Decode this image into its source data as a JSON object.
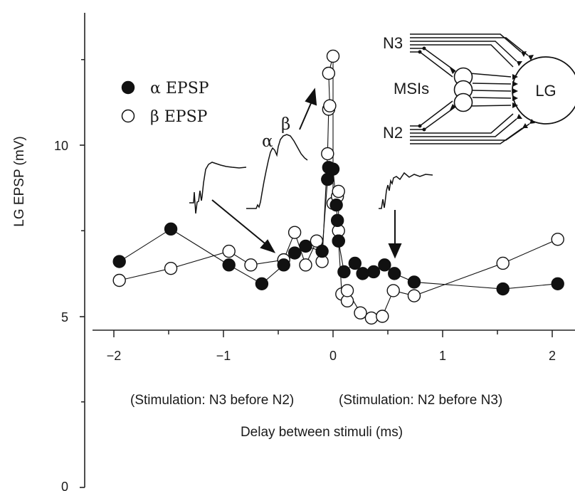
{
  "chart_data": {
    "type": "scatter",
    "ylabel": "LG EPSP (mV)",
    "xlabel": "Delay between stimuli (ms)",
    "xlabel_left_note": "(Stimulation: N3 before N2)",
    "xlabel_right_note": "(Stimulation: N2 before N3)",
    "xlim": [
      -2,
      2
    ],
    "ylim": [
      0,
      12.5
    ],
    "x_ticks": [
      "−2",
      "−1",
      "0",
      "1",
      "2"
    ],
    "y_ticks": [
      "0",
      "5",
      "10"
    ],
    "legend_position": "top-left",
    "series": [
      {
        "name": "α EPSP",
        "marker": "filled-circle",
        "color": "#111111",
        "points": [
          [
            -1.95,
            6.6
          ],
          [
            -1.48,
            7.55
          ],
          [
            -0.95,
            6.5
          ],
          [
            -0.65,
            5.95
          ],
          [
            -0.45,
            6.5
          ],
          [
            -0.35,
            6.85
          ],
          [
            -0.25,
            7.05
          ],
          [
            -0.1,
            6.9
          ],
          [
            -0.05,
            9.0
          ],
          [
            -0.04,
            9.35
          ],
          [
            0.0,
            9.3
          ],
          [
            0.03,
            8.25
          ],
          [
            0.04,
            7.8
          ],
          [
            0.05,
            7.2
          ],
          [
            0.1,
            6.3
          ],
          [
            0.2,
            6.55
          ],
          [
            0.27,
            6.25
          ],
          [
            0.37,
            6.3
          ],
          [
            0.47,
            6.5
          ],
          [
            0.56,
            6.25
          ],
          [
            0.74,
            6.0
          ],
          [
            1.55,
            5.8
          ],
          [
            2.05,
            5.95
          ]
        ]
      },
      {
        "name": "β EPSP",
        "marker": "open-circle",
        "color": "#111111",
        "points": [
          [
            -1.95,
            6.05
          ],
          [
            -1.48,
            6.4
          ],
          [
            -0.95,
            6.9
          ],
          [
            -0.75,
            6.5
          ],
          [
            -0.45,
            6.65
          ],
          [
            -0.35,
            7.45
          ],
          [
            -0.25,
            6.5
          ],
          [
            -0.15,
            7.2
          ],
          [
            -0.1,
            6.6
          ],
          [
            -0.05,
            9.75
          ],
          [
            -0.04,
            11.05
          ],
          [
            -0.03,
            11.15
          ],
          [
            -0.04,
            12.1
          ],
          [
            0.0,
            12.6
          ],
          [
            0.0,
            8.3
          ],
          [
            0.04,
            8.5
          ],
          [
            0.05,
            8.65
          ],
          [
            0.05,
            7.5
          ],
          [
            0.05,
            7.2
          ],
          [
            0.08,
            5.65
          ],
          [
            0.13,
            5.45
          ],
          [
            0.13,
            5.75
          ],
          [
            0.25,
            5.1
          ],
          [
            0.35,
            4.95
          ],
          [
            0.45,
            5.0
          ],
          [
            0.55,
            5.75
          ],
          [
            0.74,
            5.6
          ],
          [
            1.55,
            6.55
          ],
          [
            2.05,
            7.25
          ]
        ]
      }
    ],
    "annotations": {
      "trace_alpha": "α",
      "trace_beta": "β",
      "schematic": {
        "n3": "N3",
        "n2": "N2",
        "msis": "MSIs",
        "lg": "LG"
      }
    }
  }
}
